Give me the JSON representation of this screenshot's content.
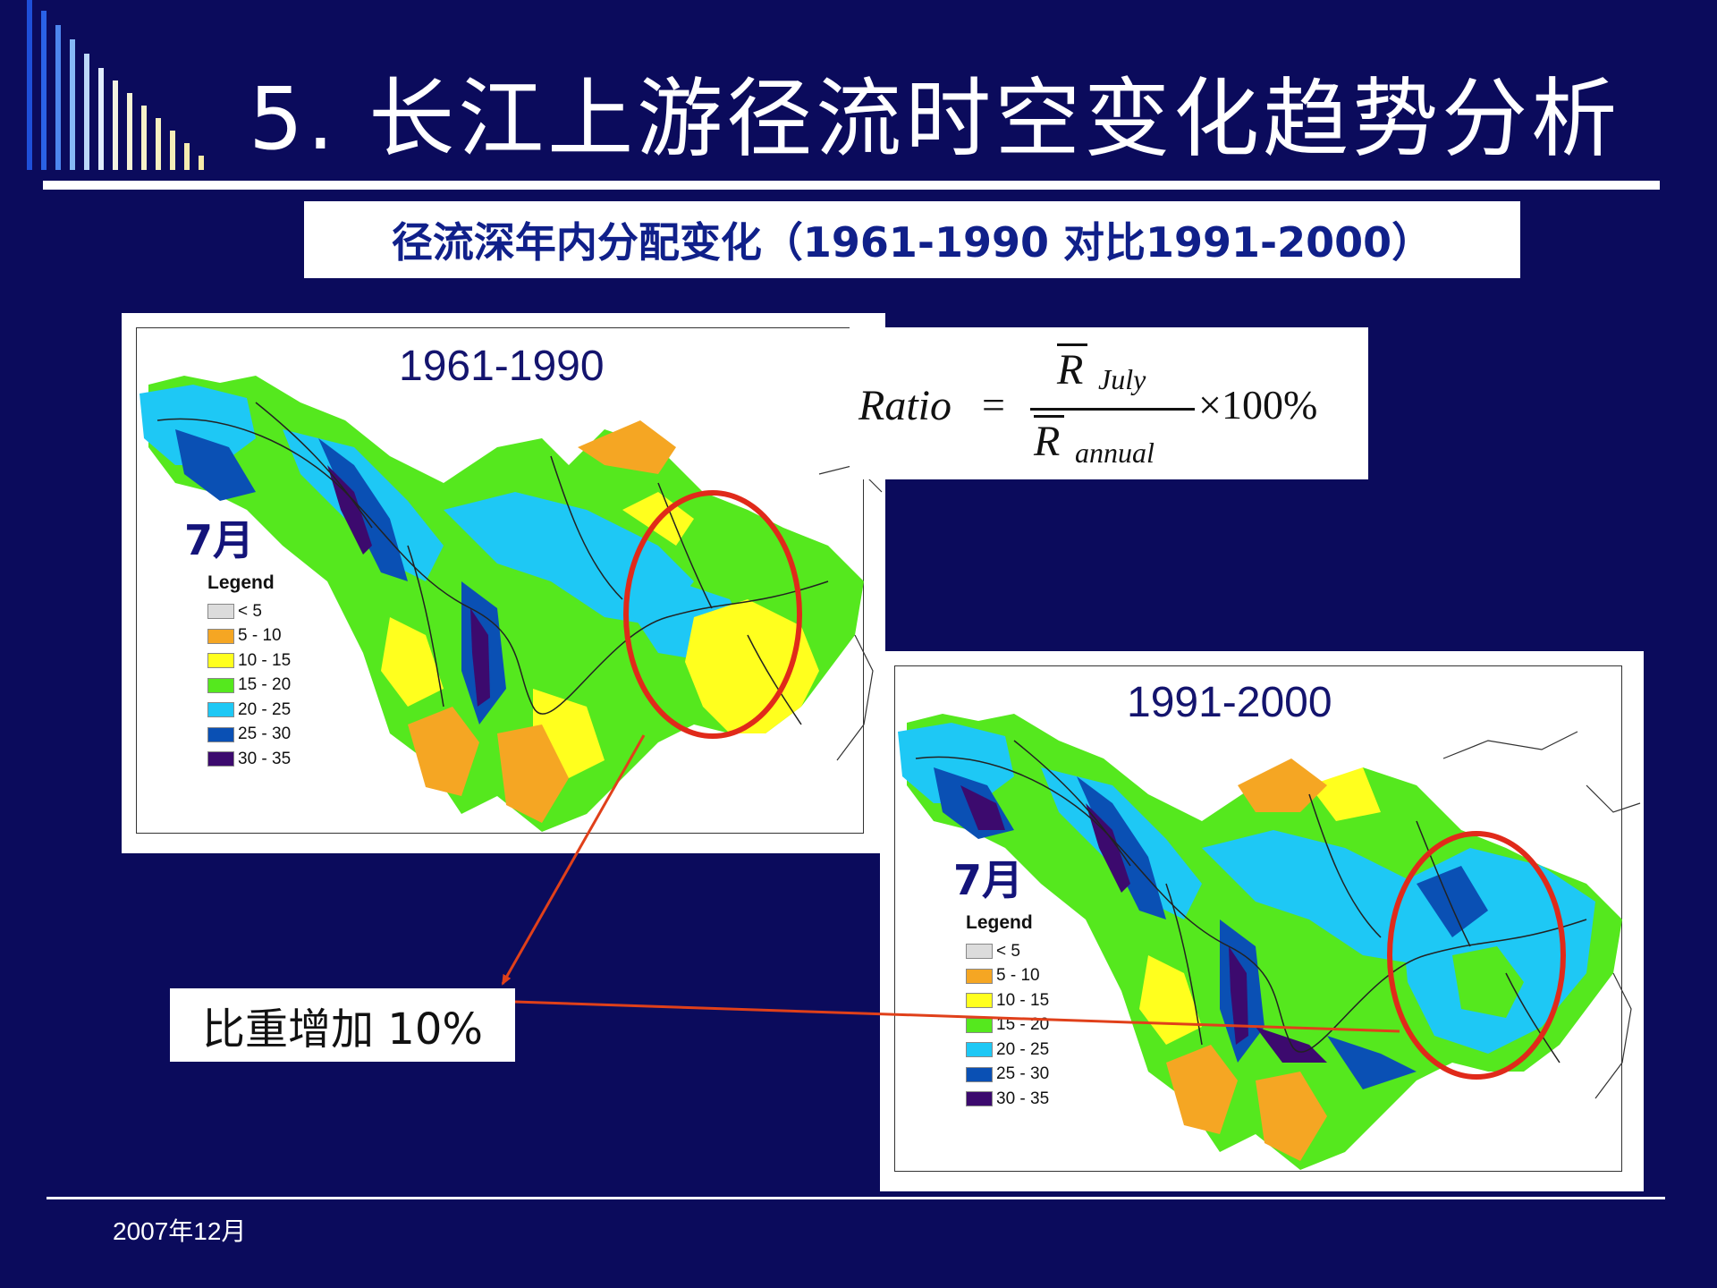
{
  "slide": {
    "title": "5.  长江上游径流时空变化趋势分析",
    "subtitle": "径流深年内分配变化（1961-1990 对比1991-2000）",
    "date": "2007年12月"
  },
  "formula": {
    "lhs": "Ratio",
    "equals": "=",
    "numerator_symbol": "R",
    "numerator_sub": "July",
    "denominator_symbol": "R",
    "denominator_sub": "annual",
    "multiplier": "×100%"
  },
  "maps": [
    {
      "period": "1961-1990",
      "month_label": "7月",
      "legend_title": "Legend"
    },
    {
      "period": "1991-2000",
      "month_label": "7月",
      "legend_title": "Legend"
    }
  ],
  "legend_items": [
    {
      "label": "< 5",
      "color": "#dcdcdc"
    },
    {
      "label": "5 - 10",
      "color": "#f5a623"
    },
    {
      "label": "10 - 15",
      "color": "#ffff1e"
    },
    {
      "label": "15 - 20",
      "color": "#55e81e"
    },
    {
      "label": "20 - 25",
      "color": "#1ec8f5"
    },
    {
      "label": "25 - 30",
      "color": "#0a50b4"
    },
    {
      "label": "30 - 35",
      "color": "#3c0a6e"
    }
  ],
  "annotation": {
    "text": "比重增加 10%",
    "ellipse_color": "#e02a1a",
    "arrow_color": "#e0401a"
  },
  "colors": {
    "background": "#0b0b5c",
    "subtitle_text": "#10208a"
  }
}
